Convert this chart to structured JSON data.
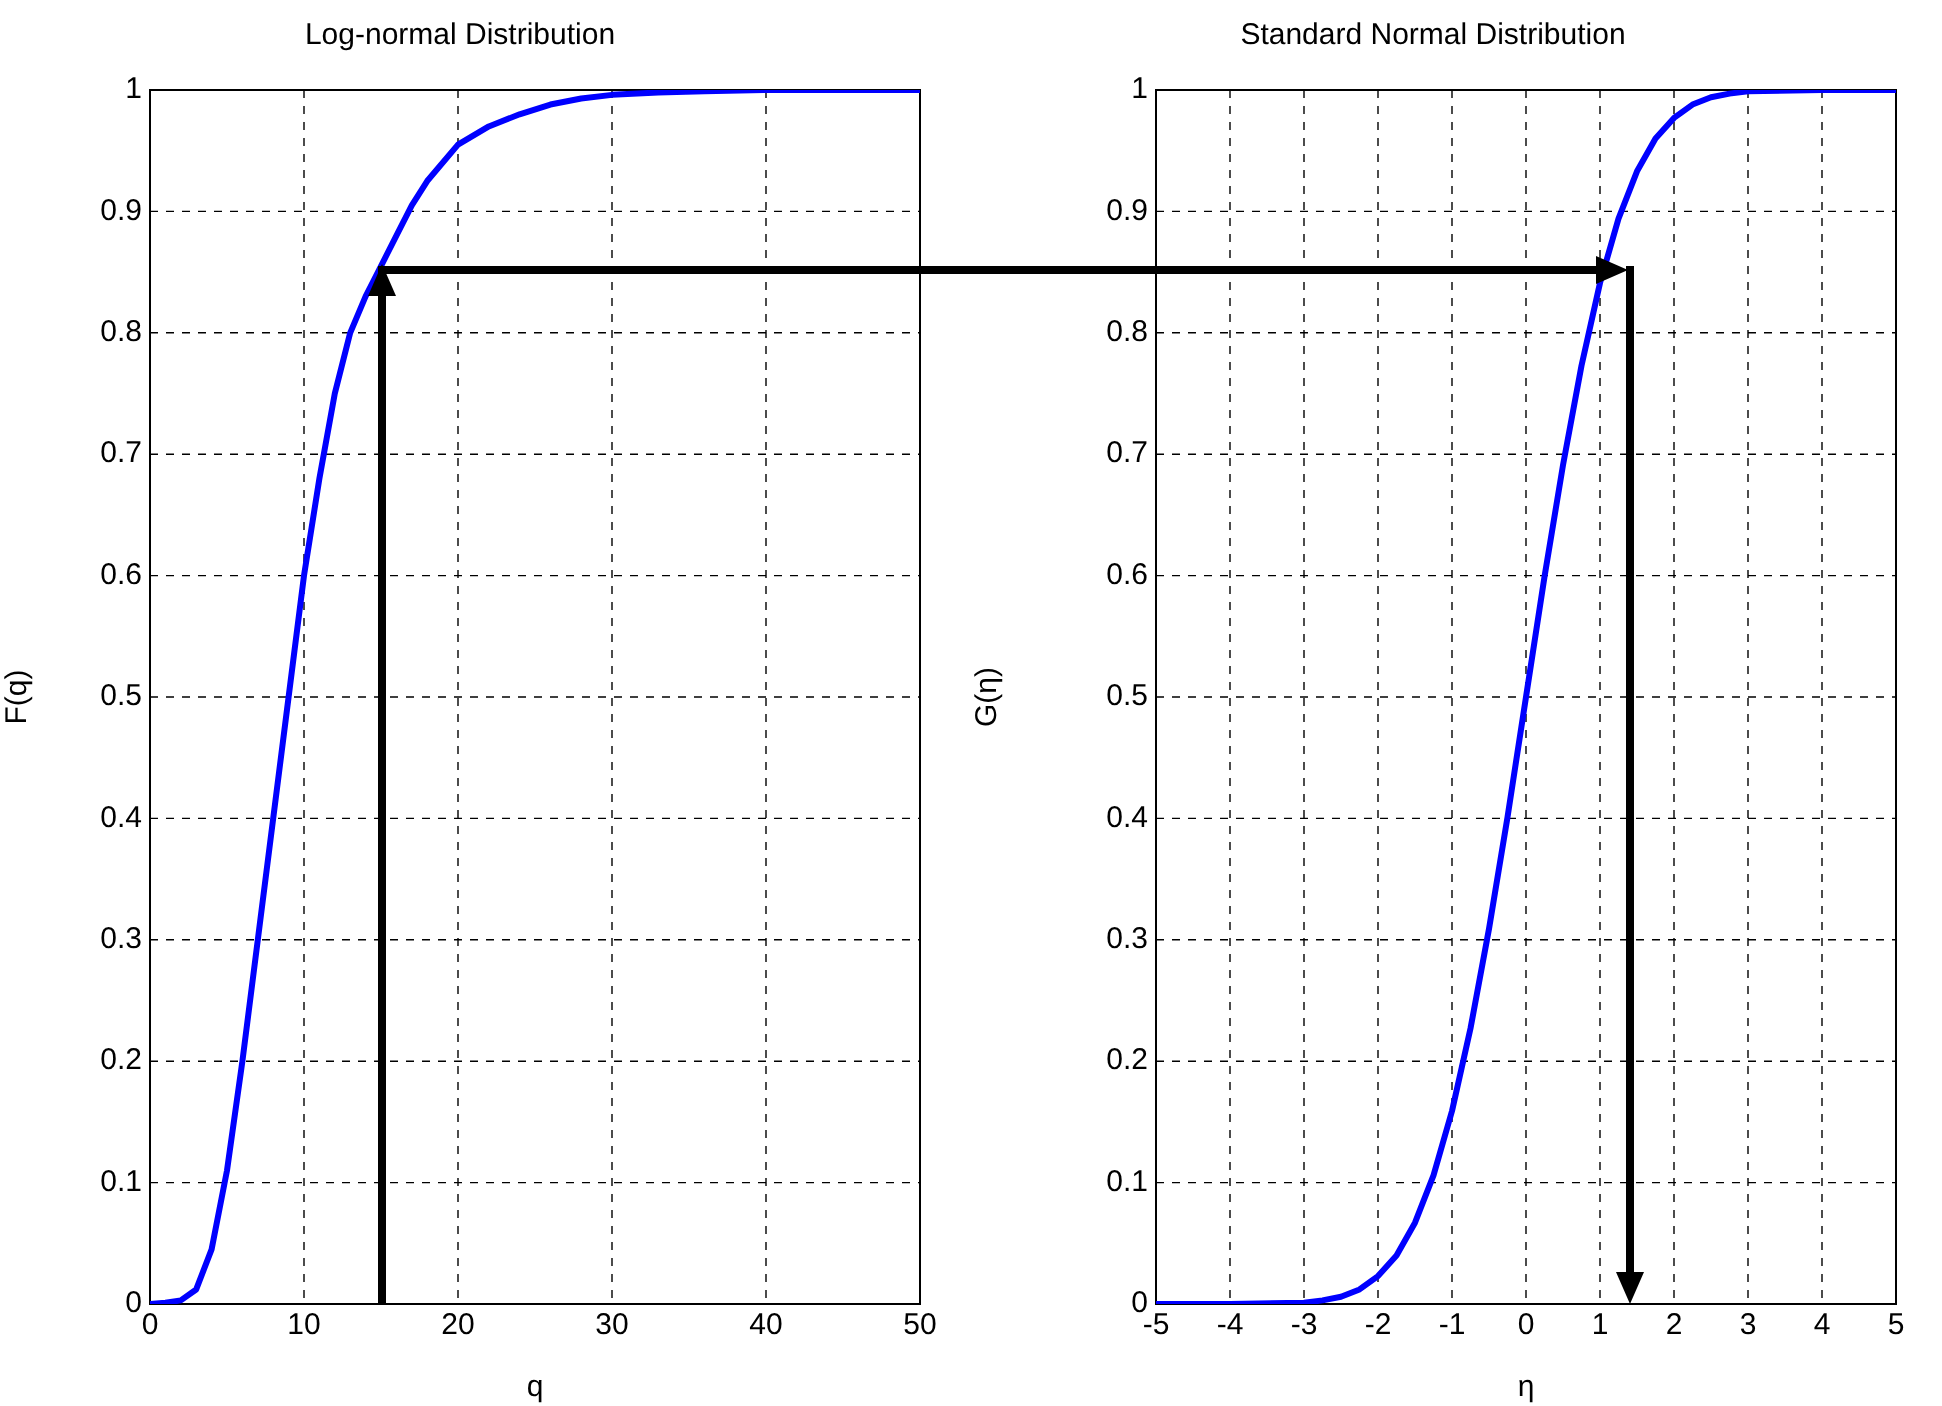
{
  "chart_data": [
    {
      "type": "line",
      "title": "Log-normal Distribution",
      "xlabel": "q",
      "ylabel": "F(q)",
      "color": "#0000ff",
      "marker": "none",
      "line_style": "solid",
      "grid": true,
      "x": [
        0,
        1,
        2,
        3,
        4,
        5,
        6,
        7,
        8,
        9,
        10,
        11,
        12,
        13,
        14,
        15,
        16,
        17,
        18,
        20,
        22,
        24,
        26,
        28,
        30,
        33,
        36,
        40,
        45,
        50
      ],
      "values": [
        0,
        0.001,
        0.003,
        0.012,
        0.045,
        0.11,
        0.2,
        0.3,
        0.4,
        0.5,
        0.6,
        0.68,
        0.75,
        0.8,
        0.83,
        0.855,
        0.88,
        0.905,
        0.925,
        0.955,
        0.97,
        0.98,
        0.988,
        0.993,
        0.996,
        0.998,
        0.999,
        1,
        1,
        1
      ],
      "xlim": [
        0,
        50
      ],
      "xticks": [
        0,
        10,
        20,
        30,
        40,
        50
      ],
      "ylim": [
        0,
        1
      ],
      "yticks": [
        0,
        0.1,
        0.2,
        0.3,
        0.4,
        0.5,
        0.6,
        0.7,
        0.8,
        0.9,
        1
      ]
    },
    {
      "type": "line",
      "title": "Standard Normal Distribution",
      "xlabel": "η",
      "ylabel": "G(η)",
      "color": "#0000ff",
      "marker": "none",
      "line_style": "solid",
      "grid": true,
      "x": [
        -5,
        -4,
        -3,
        -2.75,
        -2.5,
        -2.25,
        -2,
        -1.75,
        -1.5,
        -1.25,
        -1,
        -0.75,
        -0.5,
        -0.25,
        0,
        0.25,
        0.5,
        0.75,
        1,
        1.25,
        1.5,
        1.75,
        2,
        2.25,
        2.5,
        2.75,
        3,
        4,
        5
      ],
      "values": [
        0,
        0,
        0.001,
        0.003,
        0.006,
        0.012,
        0.023,
        0.04,
        0.067,
        0.106,
        0.159,
        0.227,
        0.309,
        0.401,
        0.5,
        0.599,
        0.691,
        0.773,
        0.841,
        0.894,
        0.933,
        0.96,
        0.977,
        0.988,
        0.994,
        0.997,
        0.999,
        1,
        1
      ],
      "xlim": [
        -5,
        5
      ],
      "xticks": [
        -5,
        -4,
        -3,
        -2,
        -1,
        0,
        1,
        2,
        3,
        4,
        5
      ],
      "ylim": [
        0,
        1
      ],
      "yticks": [
        0,
        0.1,
        0.2,
        0.3,
        0.4,
        0.5,
        0.6,
        0.7,
        0.8,
        0.9,
        1
      ]
    }
  ]
}
